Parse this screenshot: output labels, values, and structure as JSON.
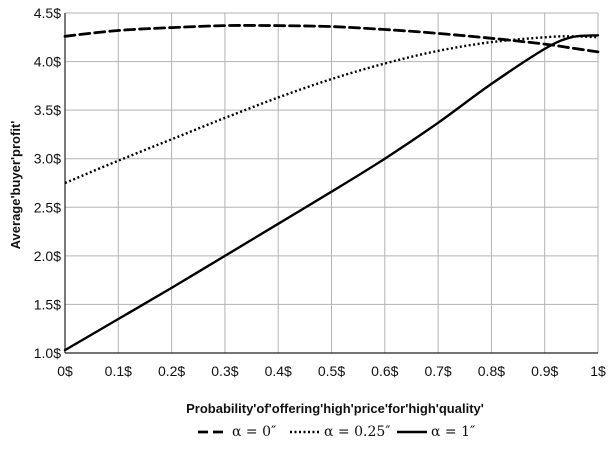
{
  "chart_data": {
    "type": "line",
    "title": "",
    "xlabel": "Probability'of'offering'high'price'for'high'quality'",
    "ylabel": "Average'buyer'profit'",
    "xlim": [
      0,
      1
    ],
    "ylim": [
      1.0,
      4.5
    ],
    "x_tick_labels": [
      "0$",
      "0.1$",
      "0.2$",
      "0.3$",
      "0.4$",
      "0.5$",
      "0.6$",
      "0.7$",
      "0.8$",
      "0.9$",
      "1$"
    ],
    "y_tick_labels": [
      "1.0$",
      "1.5$",
      "2.0$",
      "2.5$",
      "3.0$",
      "3.5$",
      "4.0$",
      "4.5$"
    ],
    "grid": true,
    "legend_position": "bottom",
    "x": [
      0,
      0.1,
      0.2,
      0.3,
      0.4,
      0.5,
      0.6,
      0.7,
      0.8,
      0.9,
      0.95,
      1.0
    ],
    "series": [
      {
        "name": "α = 0″",
        "dash": "dashed",
        "values": [
          4.26,
          4.32,
          4.35,
          4.37,
          4.37,
          4.36,
          4.33,
          4.29,
          4.24,
          4.18,
          4.14,
          4.1
        ]
      },
      {
        "name": "α = 0.25″",
        "dash": "dotted",
        "values": [
          2.75,
          2.98,
          3.2,
          3.42,
          3.63,
          3.82,
          3.98,
          4.11,
          4.2,
          4.25,
          4.26,
          4.25
        ]
      },
      {
        "name": "α = 1″",
        "dash": "solid",
        "values": [
          1.03,
          1.35,
          1.67,
          2.0,
          2.33,
          2.66,
          3.0,
          3.37,
          3.77,
          4.13,
          4.25,
          4.27
        ]
      }
    ]
  }
}
